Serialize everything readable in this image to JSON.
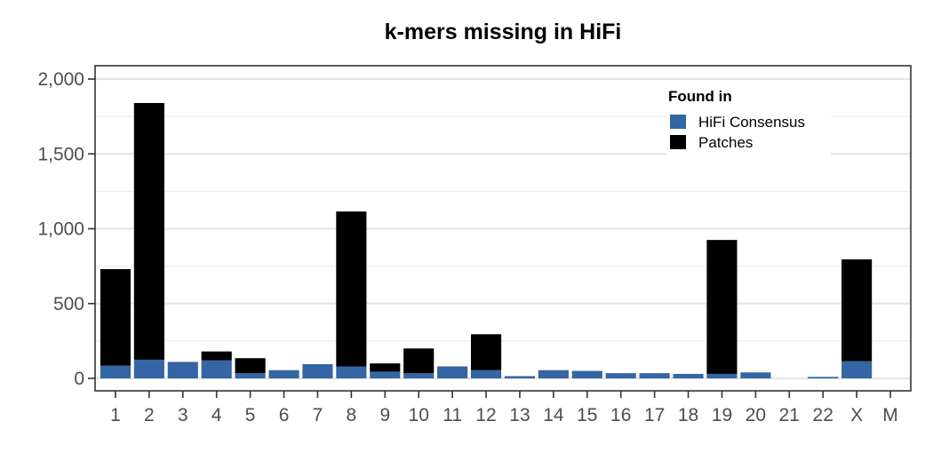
{
  "chart_data": {
    "type": "bar",
    "stacked": true,
    "title": "k-mers missing in HiFi",
    "xlabel": "",
    "ylabel": "",
    "categories": [
      "1",
      "2",
      "3",
      "4",
      "5",
      "6",
      "7",
      "8",
      "9",
      "10",
      "11",
      "12",
      "13",
      "14",
      "15",
      "16",
      "17",
      "18",
      "19",
      "20",
      "21",
      "22",
      "X",
      "M"
    ],
    "series": [
      {
        "name": "HiFi Consensus",
        "color": "#3465a4",
        "values": [
          85,
          125,
          110,
          120,
          35,
          55,
          95,
          80,
          45,
          35,
          80,
          55,
          15,
          55,
          50,
          35,
          35,
          30,
          30,
          40,
          0,
          10,
          115,
          0
        ]
      },
      {
        "name": "Patches",
        "color": "#000000",
        "values": [
          645,
          1715,
          0,
          60,
          100,
          0,
          0,
          1035,
          55,
          165,
          0,
          240,
          0,
          0,
          0,
          0,
          0,
          0,
          895,
          0,
          0,
          0,
          680,
          0
        ]
      }
    ],
    "ylim": [
      -80,
      2100
    ],
    "yticks": [
      0,
      500,
      1000,
      1500,
      2000
    ],
    "ytick_labels": [
      "0",
      "500",
      "1,000",
      "1,500",
      "2,000"
    ],
    "grid": "horizontal",
    "legend": {
      "title": "Found in",
      "position": "top-right",
      "items": [
        "HiFi Consensus",
        "Patches"
      ]
    }
  }
}
